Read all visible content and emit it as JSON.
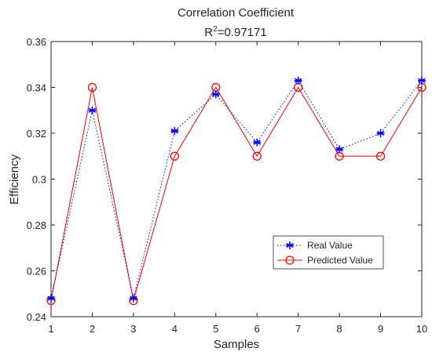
{
  "chart_data": {
    "type": "line",
    "title": "Correlation Coefficient",
    "subtitle": {
      "prefix": "R",
      "sup": "2",
      "suffix": "=0.97171"
    },
    "xlabel": "Samples",
    "ylabel": "Efficiency",
    "xlim": [
      1,
      10
    ],
    "ylim": [
      0.24,
      0.36
    ],
    "x": [
      1,
      2,
      3,
      4,
      5,
      6,
      7,
      8,
      9,
      10
    ],
    "x_ticks": [
      "1",
      "2",
      "3",
      "4",
      "5",
      "6",
      "7",
      "8",
      "9",
      "10"
    ],
    "y_ticks": [
      0.24,
      0.26,
      0.28,
      0.3,
      0.32,
      0.34,
      0.36
    ],
    "y_tick_labels": [
      "0.24",
      "0.26",
      "0.28",
      "0.3",
      "0.32",
      "0.34",
      "0.36"
    ],
    "grid": false,
    "legend_position": "bottom-right",
    "series": [
      {
        "name": "Real Value",
        "values": [
          0.248,
          0.33,
          0.248,
          0.321,
          0.337,
          0.316,
          0.343,
          0.313,
          0.32,
          0.343
        ],
        "color": "#0000ff",
        "line_style": "dotted",
        "marker": "asterisk"
      },
      {
        "name": "Predicted Value",
        "values": [
          0.247,
          0.34,
          0.247,
          0.31,
          0.34,
          0.31,
          0.34,
          0.31,
          0.31,
          0.34
        ],
        "color": "#ff0000",
        "line_style": "solid",
        "marker": "circle"
      }
    ]
  }
}
